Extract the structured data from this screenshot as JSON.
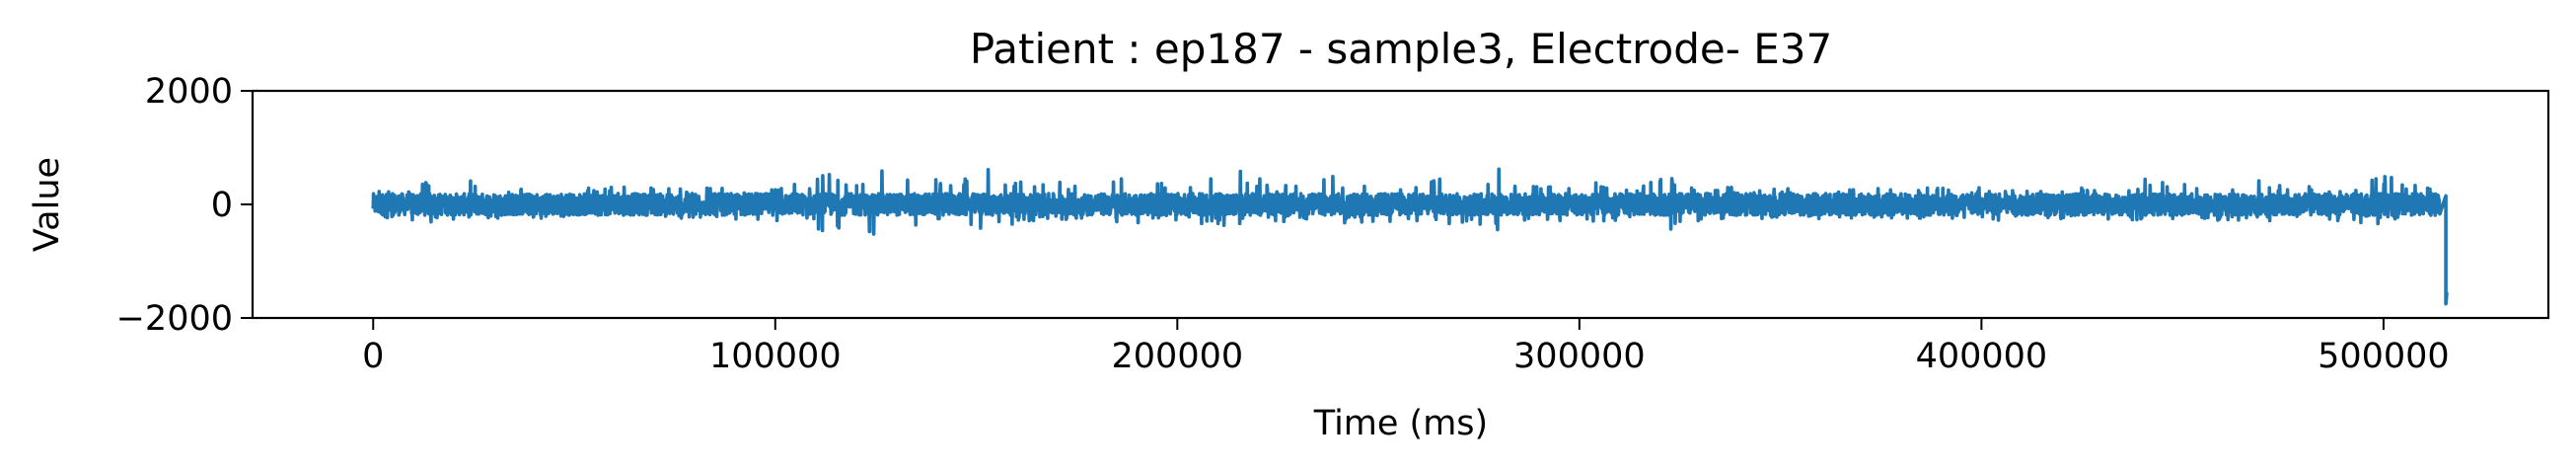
{
  "chart_data": {
    "type": "line",
    "title": "Patient : ep187 - sample3, Electrode- E37",
    "xlabel": "Time (ms)",
    "ylabel": "Value",
    "xlim": [
      -30000,
      541000
    ],
    "ylim": [
      -2000,
      2000
    ],
    "x_ticks": [
      0,
      100000,
      200000,
      300000,
      400000,
      500000
    ],
    "y_ticks": [
      -2000,
      0,
      2000
    ],
    "y_tick_labels": [
      "−2000",
      "0",
      "2000"
    ],
    "grid": false,
    "legend": "none",
    "series": [
      {
        "color": "#1f77b4",
        "envelope": {
          "x": [
            0,
            2000,
            5000,
            22000,
            24000,
            27000,
            45000,
            55000,
            75000,
            100000,
            109000,
            111000,
            114000,
            117000,
            121000,
            126000,
            128000,
            132000,
            145000,
            150000,
            152000,
            160000,
            170000,
            182000,
            190000,
            192000,
            200000,
            215000,
            225000,
            238000,
            250000,
            262000,
            270000,
            277000,
            279000,
            285000,
            300000,
            315000,
            322000,
            325000,
            345000,
            370000,
            390000,
            410000,
            430000,
            440000,
            455000,
            463000,
            468000,
            475000,
            490000,
            500000,
            510000,
            514000,
            515500
          ],
          "upper": [
            400,
            250,
            300,
            550,
            420,
            300,
            250,
            330,
            300,
            320,
            450,
            850,
            780,
            500,
            400,
            950,
            500,
            650,
            350,
            800,
            650,
            450,
            400,
            380,
            750,
            400,
            350,
            650,
            350,
            500,
            350,
            400,
            700,
            500,
            850,
            400,
            400,
            330,
            550,
            300,
            300,
            300,
            300,
            320,
            300,
            450,
            320,
            400,
            550,
            350,
            350,
            520,
            300,
            280,
            150
          ],
          "lower": [
            -350,
            -250,
            -300,
            -350,
            -300,
            -300,
            -250,
            -250,
            -250,
            -300,
            -300,
            -550,
            -750,
            -400,
            -350,
            -650,
            -400,
            -450,
            -300,
            -550,
            -450,
            -350,
            -300,
            -300,
            -550,
            -350,
            -300,
            -400,
            -300,
            -350,
            -300,
            -300,
            -450,
            -350,
            -500,
            -300,
            -300,
            -300,
            -600,
            -300,
            -250,
            -250,
            -250,
            -300,
            -250,
            -350,
            -300,
            -300,
            -350,
            -300,
            -300,
            -350,
            -250,
            -250,
            -1750
          ]
        }
      }
    ]
  }
}
